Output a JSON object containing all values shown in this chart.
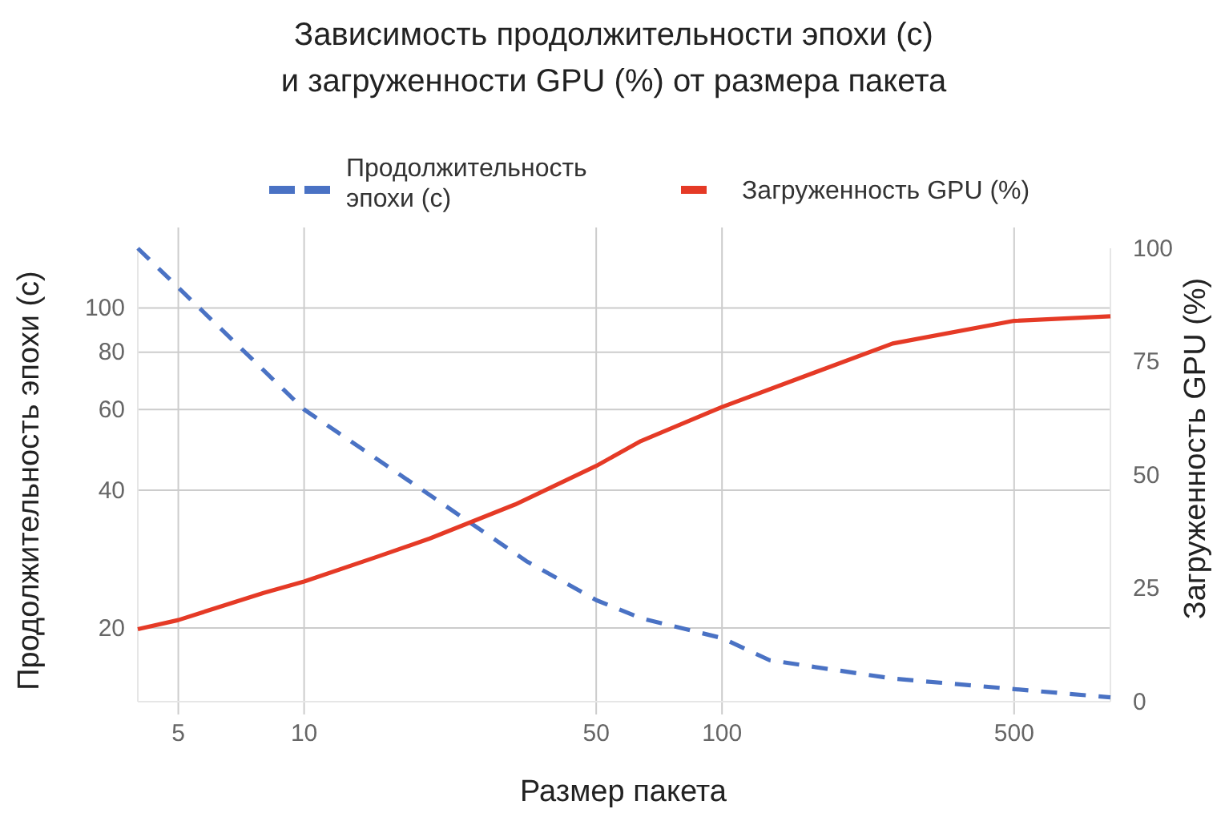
{
  "chart_data": {
    "type": "line",
    "title": "Зависимость продолжительности эпохи (с)\nи загруженности GPU (%) от размера пакета",
    "xlabel": "Размер пакета",
    "ylabel": "Продолжительность эпохи (с)",
    "y2label": "Загруженность GPU (%)",
    "log": "xy",
    "xlim": [
      4,
      850
    ],
    "xticks": [
      5,
      10,
      50,
      100,
      500
    ],
    "ylim": [
      13.8,
      135
    ],
    "yticks": [
      20,
      40,
      60,
      80,
      100
    ],
    "y2lim": [
      0,
      100
    ],
    "y2ticks": [
      0,
      25,
      50,
      75,
      100
    ],
    "grid": true,
    "legend": "top",
    "marker": "none",
    "series": [
      {
        "name": "Продолжительность эпохи (с)",
        "color": "#4a72c4",
        "line_style": "dashed",
        "x": [
          4,
          10,
          20,
          34,
          50,
          64,
          100,
          130,
          256,
          500,
          850
        ],
        "values": [
          135,
          60,
          39,
          28,
          23,
          21,
          19,
          17,
          15.5,
          14.7,
          14.1
        ]
      },
      {
        "name": "Загруженность GPU (%)",
        "color": "#e53a26",
        "line_style": "solid",
        "axis": "y2",
        "x": [
          4,
          5,
          8,
          10,
          15,
          20,
          32,
          50,
          64,
          100,
          256,
          500,
          850
        ],
        "values": [
          16,
          18,
          24,
          26.5,
          32,
          36,
          43.5,
          52,
          57.5,
          65,
          79,
          84,
          85
        ]
      }
    ]
  }
}
